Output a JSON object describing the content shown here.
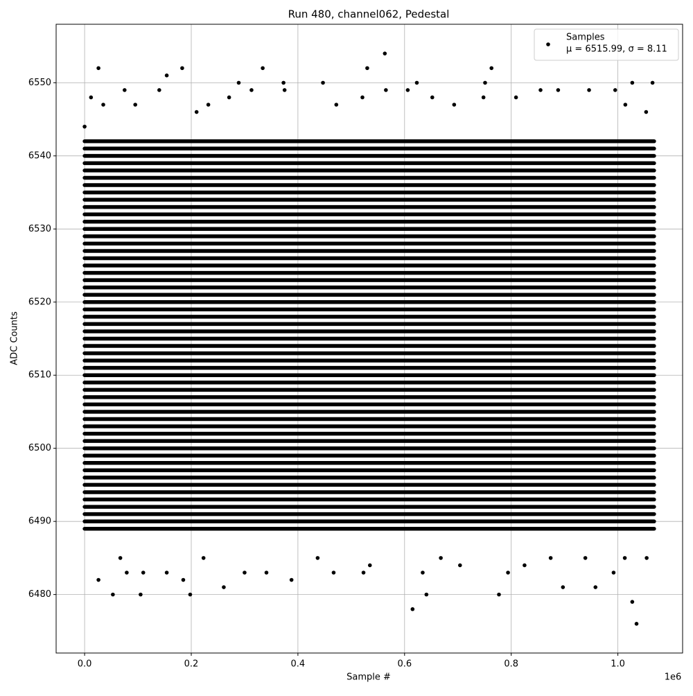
{
  "chart_data": {
    "type": "scatter",
    "title": "Run 480, channel062, Pedestal",
    "x_label": "Sample #",
    "y_label": "ADC Counts",
    "x_offset_label": "1e6",
    "xlim": [
      -53400,
      1121400
    ],
    "ylim": [
      6472.0,
      6558.0
    ],
    "xticks": [
      {
        "value": 0,
        "label": "0.0"
      },
      {
        "value": 200000,
        "label": "0.2"
      },
      {
        "value": 400000,
        "label": "0.4"
      },
      {
        "value": 600000,
        "label": "0.6"
      },
      {
        "value": 800000,
        "label": "0.8"
      },
      {
        "value": 1000000,
        "label": "1.0"
      }
    ],
    "yticks": [
      6480,
      6490,
      6500,
      6510,
      6520,
      6530,
      6540,
      6550
    ],
    "grid": true,
    "legend": "upper right",
    "series": [
      {
        "name": "Samples",
        "stats": "μ = 6515.99, σ = 8.11",
        "color": "#000000",
        "x_range": [
          0,
          1068000
        ],
        "levels": [
          6489,
          6490,
          6491,
          6492,
          6493,
          6494,
          6495,
          6496,
          6497,
          6498,
          6499,
          6500,
          6501,
          6502,
          6503,
          6504,
          6505,
          6506,
          6507,
          6508,
          6509,
          6510,
          6511,
          6512,
          6513,
          6514,
          6515,
          6516,
          6517,
          6518,
          6519,
          6520,
          6521,
          6522,
          6523,
          6524,
          6525,
          6526,
          6527,
          6528,
          6529,
          6530,
          6531,
          6532,
          6533,
          6534,
          6535,
          6536,
          6537,
          6538,
          6539,
          6540,
          6541,
          6542
        ],
        "x": [
          0,
          26000,
          26000,
          53000,
          75000,
          105000,
          154000,
          183000,
          185000,
          198000,
          261000,
          289000,
          334000,
          373000,
          388000,
          447000,
          530000,
          563000,
          565000,
          615000,
          623000,
          641000,
          751000,
          763000,
          777000,
          897000,
          958000,
          1027000,
          1027000,
          1035000,
          1065000,
          12000,
          35000,
          95000,
          140000,
          210000,
          232000,
          271000,
          313000,
          375000,
          472000,
          521000,
          606000,
          652000,
          693000,
          748000,
          809000,
          855000,
          888000,
          946000,
          995000,
          1014000,
          1053000,
          67000,
          79000,
          110000,
          154000,
          223000,
          300000,
          341000,
          437000,
          467000,
          523000,
          535000,
          634000,
          668000,
          704000,
          794000,
          825000,
          874000,
          939000,
          992000,
          1013000,
          1054000
        ],
        "values": [
          6544,
          6482,
          6552,
          6480,
          6549,
          6480,
          6551,
          6552,
          6482,
          6480,
          6481,
          6550,
          6552,
          6550,
          6482,
          6550,
          6552,
          6554,
          6549,
          6478,
          6550,
          6480,
          6550,
          6552,
          6480,
          6481,
          6481,
          6479,
          6550,
          6476,
          6550,
          6548,
          6547,
          6547,
          6549,
          6546,
          6547,
          6548,
          6549,
          6549,
          6547,
          6548,
          6549,
          6548,
          6547,
          6548,
          6548,
          6549,
          6549,
          6549,
          6549,
          6547,
          6546,
          6485,
          6483,
          6483,
          6483,
          6485,
          6483,
          6483,
          6485,
          6483,
          6483,
          6484,
          6483,
          6485,
          6484,
          6483,
          6484,
          6485,
          6485,
          6483,
          6485,
          6485
        ]
      }
    ]
  }
}
